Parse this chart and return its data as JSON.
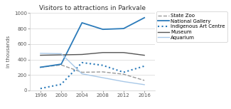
{
  "title": "Visitors to attractions in Parkvale",
  "ylabel": "in thousands",
  "xlim": [
    1994,
    2018
  ],
  "ylim": [
    0,
    1000
  ],
  "yticks": [
    0,
    200,
    400,
    600,
    800,
    1000
  ],
  "xticks": [
    1996,
    2000,
    2004,
    2008,
    2012,
    2016
  ],
  "years": [
    1996,
    2000,
    2004,
    2008,
    2012,
    2016
  ],
  "bg_color": "#ffffff",
  "series": [
    {
      "name": "State Zoo",
      "values": [
        300,
        330,
        235,
        240,
        210,
        130
      ],
      "color": "#999999",
      "linestyle": "--",
      "linewidth": 1.0
    },
    {
      "name": "National Gallery",
      "values": [
        300,
        340,
        875,
        790,
        800,
        940
      ],
      "color": "#2b7bba",
      "linestyle": "-",
      "linewidth": 1.3
    },
    {
      "name": "Indigenous Art Centre",
      "values": [
        25,
        80,
        360,
        325,
        235,
        315
      ],
      "color": "#2b7bba",
      "linestyle": ":",
      "linewidth": 1.5
    },
    {
      "name": "Museum",
      "values": [
        455,
        460,
        465,
        490,
        490,
        455
      ],
      "color": "#555555",
      "linestyle": "-",
      "linewidth": 1.0
    },
    {
      "name": "Aquarium",
      "values": [
        480,
        475,
        215,
        165,
        115,
        75
      ],
      "color": "#a8c8e8",
      "linestyle": "-",
      "linewidth": 1.0
    }
  ]
}
